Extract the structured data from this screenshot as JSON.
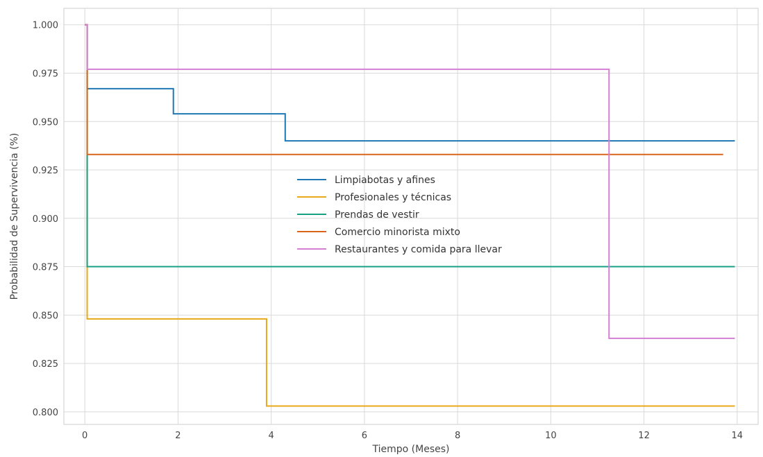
{
  "chart_data": {
    "type": "line",
    "step": true,
    "xlabel": "Tiempo (Meses)",
    "ylabel": "Probabilidad de Supervivencia (%)",
    "xlim": [
      -0.45,
      14.45
    ],
    "ylim": [
      0.7935,
      1.0085
    ],
    "xticks": [
      0,
      2,
      4,
      6,
      8,
      10,
      12,
      14
    ],
    "yticks": [
      0.8,
      0.825,
      0.85,
      0.875,
      0.9,
      0.925,
      0.95,
      0.975,
      1.0
    ],
    "xtick_labels": [
      "0",
      "2",
      "4",
      "6",
      "8",
      "10",
      "12",
      "14"
    ],
    "ytick_labels": [
      "0.800",
      "0.825",
      "0.850",
      "0.875",
      "0.900",
      "0.925",
      "0.950",
      "0.975",
      "1.000"
    ],
    "grid": true,
    "legend_position": "center",
    "series": [
      {
        "name": "Limpiabotas y afines",
        "color": "#1f77b4",
        "points": [
          [
            0,
            1.0
          ],
          [
            0.05,
            0.967
          ],
          [
            1.9,
            0.954
          ],
          [
            4.3,
            0.94
          ],
          [
            13.95,
            0.94
          ]
        ]
      },
      {
        "name": "Profesionales y técnicas",
        "color": "#e8a817",
        "points": [
          [
            0,
            1.0
          ],
          [
            0.05,
            0.848
          ],
          [
            3.9,
            0.803
          ],
          [
            13.95,
            0.803
          ]
        ]
      },
      {
        "name": "Prendas de vestir",
        "color": "#17a084",
        "points": [
          [
            0,
            1.0
          ],
          [
            0.05,
            0.875
          ],
          [
            13.95,
            0.875
          ]
        ]
      },
      {
        "name": "Comercio minorista mixto",
        "color": "#d9651b",
        "points": [
          [
            0,
            1.0
          ],
          [
            0.05,
            0.933
          ],
          [
            13.7,
            0.933
          ]
        ]
      },
      {
        "name": "Restaurantes y comida para llevar",
        "color": "#d47fd4",
        "points": [
          [
            0,
            1.0
          ],
          [
            0.05,
            0.977
          ],
          [
            11.25,
            0.838
          ],
          [
            13.95,
            0.838
          ]
        ]
      }
    ]
  }
}
